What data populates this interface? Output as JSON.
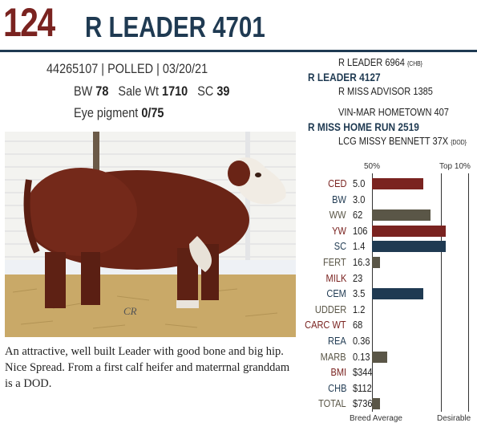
{
  "header": {
    "lot_number": "124",
    "animal_name": "R LEADER 4701"
  },
  "info": {
    "registration": "44265107 | POLLED | 03/20/21",
    "bw_label": "BW",
    "bw_value": "78",
    "sale_wt_label": "Sale Wt",
    "sale_wt_value": "1710",
    "sc_label": "SC",
    "sc_value": "39",
    "eye_label": "Eye pigment",
    "eye_value": "0/75"
  },
  "pedigree": {
    "sire_sire": "R LEADER 6964",
    "sire_sire_tag": "{CHB}",
    "sire": "R LEADER 4127",
    "sire_dam": "R MISS ADVISOR 1385",
    "dam_sire": "VIN-MAR HOMETOWN 407",
    "dam": "R MISS HOME RUN 2519",
    "dam_dam": "LCG MISSY BENNETT 37X",
    "dam_dam_tag": "{DOD}"
  },
  "photo": {
    "watermark": "CR"
  },
  "description": "An attractive, well built Leader with good bone and big hip. Nice Spread. From a first calf heifer and materrnal granddam is a DOD.",
  "epd_chart": {
    "header_left": "50%",
    "header_right": "Top 10%",
    "footer_left": "Breed Average",
    "footer_right": "Desirable",
    "colors": {
      "maroon": "#7a2320",
      "navy": "#1f3a52",
      "olive": "#5a5647"
    },
    "rows": [
      {
        "label": "CED",
        "value": "5.0",
        "label_color": "#7a2320",
        "bar": 0.53,
        "bar_color": "#7a2320"
      },
      {
        "label": "BW",
        "value": "3.0",
        "label_color": "#1f3a52",
        "bar": 0,
        "bar_color": ""
      },
      {
        "label": "WW",
        "value": "62",
        "label_color": "#5a5647",
        "bar": 0.61,
        "bar_color": "#5a5647"
      },
      {
        "label": "YW",
        "value": "106",
        "label_color": "#7a2320",
        "bar": 0.77,
        "bar_color": "#7a2320"
      },
      {
        "label": "SC",
        "value": "1.4",
        "label_color": "#1f3a52",
        "bar": 0.77,
        "bar_color": "#1f3a52"
      },
      {
        "label": "FERT",
        "value": "16.3",
        "label_color": "#5a5647",
        "bar": 0.08,
        "bar_color": "#5a5647"
      },
      {
        "label": "MILK",
        "value": "23",
        "label_color": "#7a2320",
        "bar": 0,
        "bar_color": ""
      },
      {
        "label": "CEM",
        "value": "3.5",
        "label_color": "#1f3a52",
        "bar": 0.53,
        "bar_color": "#1f3a52"
      },
      {
        "label": "UDDER",
        "value": "1.2",
        "label_color": "#5a5647",
        "bar": 0,
        "bar_color": ""
      },
      {
        "label": "CARC WT",
        "value": "68",
        "label_color": "#7a2320",
        "bar": 0,
        "bar_color": ""
      },
      {
        "label": "REA",
        "value": "0.36",
        "label_color": "#1f3a52",
        "bar": 0,
        "bar_color": ""
      },
      {
        "label": "MARB",
        "value": "0.13",
        "label_color": "#5a5647",
        "bar": 0.16,
        "bar_color": "#5a5647"
      },
      {
        "label": "BMI",
        "value": "$344",
        "label_color": "#7a2320",
        "bar": 0,
        "bar_color": ""
      },
      {
        "label": "CHB",
        "value": "$112",
        "label_color": "#1f3a52",
        "bar": 0,
        "bar_color": ""
      },
      {
        "label": "TOTAL",
        "value": "$736",
        "label_color": "#5a5647",
        "bar": 0.08,
        "bar_color": "#5a5647"
      }
    ]
  }
}
